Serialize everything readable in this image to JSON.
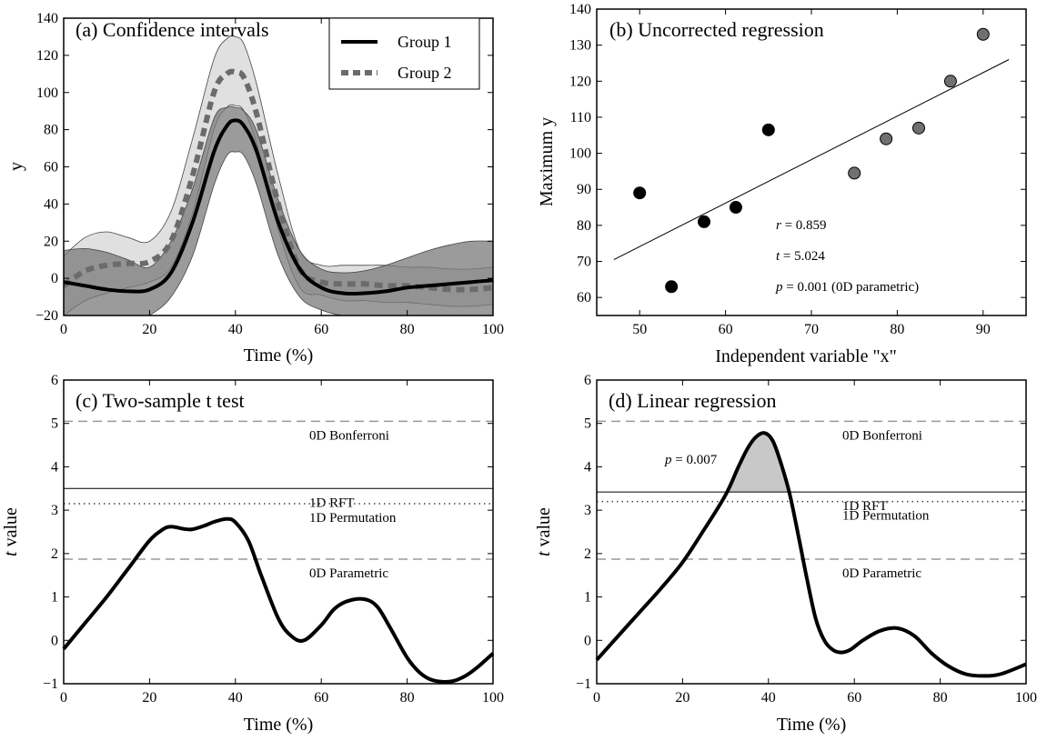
{
  "chart_data": [
    {
      "id": "a",
      "type": "line",
      "title": "(a) Confidence intervals",
      "xlabel": "Time (%)",
      "ylabel": "y",
      "xlim": [
        0,
        100
      ],
      "ylim": [
        -20,
        140
      ],
      "xticks": [
        0,
        20,
        40,
        60,
        80,
        100
      ],
      "yticks": [
        -20,
        0,
        20,
        40,
        60,
        80,
        100,
        120,
        140
      ],
      "grid": false,
      "legend_position": "top-right",
      "x": [
        0,
        5,
        10,
        15,
        20,
        25,
        30,
        35,
        38,
        40,
        42,
        45,
        50,
        55,
        60,
        65,
        70,
        75,
        80,
        85,
        90,
        95,
        100
      ],
      "series": [
        {
          "name": "Group 1",
          "style": "solid",
          "color": "#000000",
          "values": [
            -2,
            -4,
            -6,
            -7,
            -6,
            3,
            30,
            68,
            82,
            85,
            82,
            68,
            30,
            5,
            -5,
            -8,
            -8,
            -7,
            -5,
            -4,
            -3,
            -2,
            -1
          ],
          "ci_upper": [
            15,
            16,
            14,
            10,
            6,
            20,
            48,
            86,
            92,
            92,
            90,
            79,
            42,
            15,
            5,
            3,
            4,
            7,
            11,
            15,
            18,
            20,
            20
          ],
          "ci_lower": [
            -20,
            -26,
            -28,
            -26,
            -20,
            -10,
            12,
            50,
            66,
            68,
            66,
            50,
            12,
            -10,
            -17,
            -20,
            -20,
            -20,
            -21,
            -23,
            -24,
            -22,
            -20
          ],
          "ci_color": "#7a7a7a"
        },
        {
          "name": "Group 2",
          "style": "dashed",
          "color": "#6b6b6b",
          "values": [
            -4,
            4,
            7,
            8,
            9,
            20,
            55,
            100,
            110,
            111,
            108,
            88,
            40,
            5,
            -2,
            -3,
            -3,
            -4,
            -4,
            -5,
            -6,
            -6,
            -5
          ],
          "ci_upper": [
            12,
            22,
            25,
            22,
            20,
            36,
            75,
            118,
            129,
            130,
            126,
            104,
            55,
            15,
            7,
            7,
            7,
            7,
            6,
            6,
            5,
            5,
            6
          ],
          "ci_lower": [
            -20,
            -12,
            -8,
            -5,
            -2,
            6,
            35,
            80,
            92,
            93,
            90,
            72,
            26,
            -5,
            -9,
            -12,
            -12,
            -13,
            -13,
            -14,
            -15,
            -15,
            -14
          ],
          "ci_color": "#e0e0e0"
        }
      ]
    },
    {
      "id": "b",
      "type": "scatter",
      "title": "(b) Uncorrected regression",
      "xlabel": "Independent variable \"x\"",
      "ylabel": "Maximum  y",
      "xlim": [
        45,
        95
      ],
      "ylim": [
        55,
        140
      ],
      "xticks": [
        50,
        60,
        70,
        80,
        90
      ],
      "yticks": [
        60,
        70,
        80,
        90,
        100,
        110,
        120,
        130,
        140
      ],
      "grid": false,
      "points": [
        {
          "x": 50,
          "y": 89,
          "color": "#000000"
        },
        {
          "x": 53.7,
          "y": 63,
          "color": "#000000"
        },
        {
          "x": 57.5,
          "y": 81,
          "color": "#000000"
        },
        {
          "x": 61.2,
          "y": 85,
          "color": "#000000"
        },
        {
          "x": 65,
          "y": 106.5,
          "color": "#000000"
        },
        {
          "x": 75,
          "y": 94.5,
          "color": "#707070"
        },
        {
          "x": 78.7,
          "y": 104,
          "color": "#707070"
        },
        {
          "x": 82.5,
          "y": 107,
          "color": "#707070"
        },
        {
          "x": 86.2,
          "y": 120,
          "color": "#707070"
        },
        {
          "x": 90,
          "y": 133,
          "color": "#707070"
        }
      ],
      "fit_line": {
        "x": [
          47,
          93
        ],
        "y": [
          70.5,
          126
        ]
      },
      "stats": {
        "r_sym": "r",
        "r_val": " = 0.859",
        "t_sym": "t",
        "t_val": " = 5.024",
        "p_sym": "p",
        "p_val": " = 0.001  (0D parametric)"
      }
    },
    {
      "id": "c",
      "type": "line",
      "title": "(c) Two-sample t test",
      "xlabel": "Time (%)",
      "ylabel_sym": "t",
      "ylabel_rest": "value",
      "xlim": [
        0,
        100
      ],
      "ylim": [
        -1,
        6
      ],
      "xticks": [
        0,
        20,
        40,
        60,
        80,
        100
      ],
      "yticks": [
        -1,
        0,
        1,
        2,
        3,
        4,
        5,
        6
      ],
      "grid": false,
      "x": [
        0,
        5,
        10,
        15,
        20,
        23,
        25,
        28,
        30,
        33,
        35,
        38,
        40,
        43,
        46,
        50,
        53,
        56,
        60,
        63,
        66,
        70,
        73,
        76,
        80,
        83,
        86,
        90,
        93,
        96,
        100
      ],
      "values": [
        -0.2,
        0.4,
        1.0,
        1.65,
        2.3,
        2.55,
        2.62,
        2.57,
        2.56,
        2.65,
        2.73,
        2.8,
        2.72,
        2.3,
        1.5,
        0.5,
        0.1,
        0.0,
        0.35,
        0.72,
        0.9,
        0.95,
        0.78,
        0.3,
        -0.4,
        -0.75,
        -0.92,
        -0.95,
        -0.85,
        -0.65,
        -0.3
      ],
      "thresholds": [
        {
          "value": 5.05,
          "label": "0D  Bonferroni",
          "style": "dashed"
        },
        {
          "value": 3.5,
          "label": "1D  RFT",
          "style": "solid"
        },
        {
          "value": 3.15,
          "label": "1D  Permutation",
          "style": "dotted"
        },
        {
          "value": 1.87,
          "label": "0D  Parametric",
          "style": "dashed"
        }
      ]
    },
    {
      "id": "d",
      "type": "line",
      "title": "(d) Linear regression",
      "xlabel": "Time (%)",
      "ylabel_sym": "t",
      "ylabel_rest": "value",
      "xlim": [
        0,
        100
      ],
      "ylim": [
        -1,
        6
      ],
      "xticks": [
        0,
        20,
        40,
        60,
        80,
        100
      ],
      "yticks": [
        -1,
        0,
        1,
        2,
        3,
        4,
        5,
        6
      ],
      "grid": false,
      "x": [
        0,
        5,
        10,
        15,
        20,
        25,
        30,
        33,
        35,
        37,
        39,
        41,
        43,
        45,
        47,
        49,
        51,
        53,
        55,
        57,
        59,
        62,
        66,
        70,
        74,
        78,
        82,
        86,
        90,
        94,
        100
      ],
      "values": [
        -0.45,
        0.1,
        0.65,
        1.2,
        1.8,
        2.55,
        3.35,
        4.0,
        4.4,
        4.68,
        4.78,
        4.6,
        4.05,
        3.35,
        2.4,
        1.4,
        0.5,
        0.0,
        -0.22,
        -0.28,
        -0.22,
        0.0,
        0.22,
        0.28,
        0.1,
        -0.3,
        -0.6,
        -0.78,
        -0.82,
        -0.78,
        -0.55
      ],
      "thresholds": [
        {
          "value": 5.05,
          "label": "0D  Bonferroni",
          "style": "dashed"
        },
        {
          "value": 3.42,
          "label": "1D  RFT",
          "style": "solid"
        },
        {
          "value": 3.2,
          "label": "1D  Permutation",
          "style": "dotted"
        },
        {
          "value": 1.87,
          "label": "0D  Parametric",
          "style": "dashed"
        }
      ],
      "cluster": {
        "sym": "p",
        "val": " = 0.007"
      }
    }
  ]
}
